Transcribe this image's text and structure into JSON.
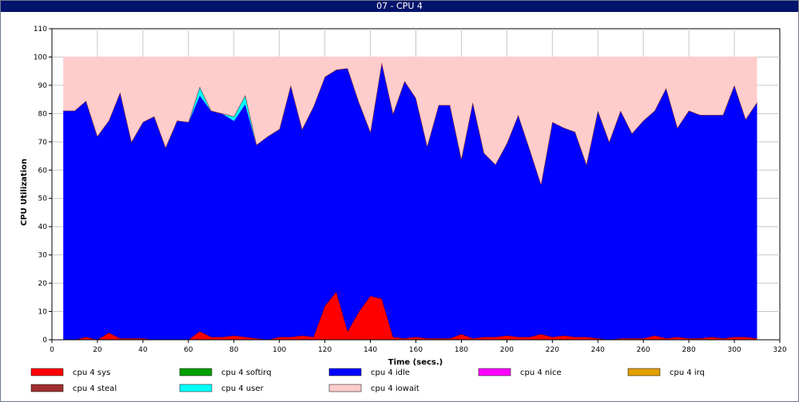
{
  "window": {
    "title": "07 - CPU 4"
  },
  "chart_data": {
    "type": "area",
    "stacked": true,
    "xlabel": "Time (secs.)",
    "ylabel": "CPU Utilization",
    "xlim": [
      0,
      320
    ],
    "ylim": [
      0,
      110
    ],
    "xticks": [
      0,
      20,
      40,
      60,
      80,
      100,
      120,
      140,
      160,
      180,
      200,
      220,
      240,
      260,
      280,
      300,
      320
    ],
    "yticks": [
      0,
      10,
      20,
      30,
      40,
      50,
      60,
      70,
      80,
      90,
      100,
      110
    ],
    "grid": true,
    "legend_position": "bottom",
    "x": [
      5,
      10,
      15,
      20,
      25,
      30,
      35,
      40,
      45,
      50,
      55,
      60,
      65,
      70,
      75,
      80,
      85,
      90,
      95,
      100,
      105,
      110,
      115,
      120,
      125,
      130,
      135,
      140,
      145,
      150,
      155,
      160,
      165,
      170,
      175,
      180,
      185,
      190,
      195,
      200,
      205,
      210,
      215,
      220,
      225,
      230,
      235,
      240,
      245,
      250,
      255,
      260,
      265,
      270,
      275,
      280,
      285,
      290,
      295,
      300,
      305,
      310
    ],
    "series": [
      {
        "name": "cpu 4 sys",
        "color": "#ff0000",
        "values": [
          0,
          0,
          1,
          0,
          2.5,
          0.5,
          0.5,
          0.5,
          0,
          0,
          0,
          0,
          3,
          1,
          1,
          1.5,
          1,
          0.5,
          0,
          1,
          1,
          1.5,
          1,
          12,
          17,
          3,
          10,
          15.5,
          14.5,
          1,
          0.5,
          1,
          0.5,
          0.5,
          0.5,
          2,
          0.5,
          1,
          1,
          1.5,
          1,
          1,
          2,
          1,
          1.5,
          1,
          1,
          0.5,
          0,
          0.5,
          0.5,
          0.5,
          1.5,
          0.5,
          1,
          0.5,
          0.5,
          1,
          0.5,
          1,
          1,
          0.5
        ]
      },
      {
        "name": "cpu 4 softirq",
        "color": "#00a000",
        "values": [
          0,
          0,
          0,
          0,
          0,
          0,
          0,
          0,
          0,
          0,
          0,
          0,
          0,
          0,
          0,
          0,
          0,
          0,
          0,
          0,
          0,
          0,
          0,
          0,
          0,
          0,
          0,
          0,
          0,
          0,
          0,
          0,
          0,
          0,
          0,
          0,
          0,
          0,
          0,
          0,
          0,
          0,
          0,
          0,
          0,
          0,
          0,
          0,
          0,
          0,
          0,
          0,
          0,
          0,
          0,
          0,
          0,
          0,
          0,
          0,
          0,
          0
        ]
      },
      {
        "name": "cpu 4 idle",
        "color": "#0000ff",
        "values": [
          81,
          81,
          83.5,
          72,
          75,
          87,
          69.5,
          76.5,
          79,
          68,
          77.5,
          77,
          83.5,
          80,
          79,
          76,
          82.5,
          68.5,
          72,
          73.5,
          89,
          73,
          81.5,
          81,
          78.5,
          93,
          74,
          58,
          83.5,
          79,
          91,
          84.5,
          68,
          82.5,
          82.5,
          62,
          83.5,
          65,
          61,
          68,
          78.5,
          66.5,
          53,
          76,
          73.5,
          72.5,
          61,
          80.5,
          70,
          80.5,
          72.5,
          77,
          79.5,
          88.5,
          74,
          80.5,
          79,
          78.5,
          79,
          89,
          77,
          83.5
        ]
      },
      {
        "name": "cpu 4 nice",
        "color": "#ff00ff",
        "values": [
          0,
          0,
          0,
          0,
          0,
          0,
          0,
          0,
          0,
          0,
          0,
          0,
          0,
          0,
          0,
          0,
          0,
          0,
          0,
          0,
          0,
          0,
          0,
          0,
          0,
          0,
          0,
          0,
          0,
          0,
          0,
          0,
          0,
          0,
          0,
          0,
          0,
          0,
          0,
          0,
          0,
          0,
          0,
          0,
          0,
          0,
          0,
          0,
          0,
          0,
          0,
          0,
          0,
          0,
          0,
          0,
          0,
          0,
          0,
          0,
          0,
          0
        ]
      },
      {
        "name": "cpu 4 irq",
        "color": "#e0a000",
        "values": [
          0,
          0,
          0,
          0,
          0,
          0,
          0,
          0,
          0,
          0,
          0,
          0,
          0,
          0,
          0,
          0,
          0,
          0,
          0,
          0,
          0,
          0,
          0,
          0,
          0,
          0,
          0,
          0,
          0,
          0,
          0,
          0,
          0,
          0,
          0,
          0,
          0,
          0,
          0,
          0,
          0,
          0,
          0,
          0,
          0,
          0,
          0,
          0,
          0,
          0,
          0,
          0,
          0,
          0,
          0,
          0,
          0,
          0,
          0,
          0,
          0,
          0
        ]
      },
      {
        "name": "cpu 4 steal",
        "color": "#a03030",
        "values": [
          0,
          0,
          0,
          0,
          0,
          0,
          0,
          0,
          0,
          0,
          0,
          0,
          0,
          0,
          0,
          0,
          0,
          0,
          0,
          0,
          0,
          0,
          0,
          0,
          0,
          0,
          0,
          0,
          0,
          0,
          0,
          0,
          0,
          0,
          0,
          0,
          0,
          0,
          0,
          0,
          0,
          0,
          0,
          0,
          0,
          0,
          0,
          0,
          0,
          0,
          0,
          0,
          0,
          0,
          0,
          0,
          0,
          0,
          0,
          0,
          0,
          0
        ]
      },
      {
        "name": "cpu 4 user",
        "color": "#00ffff",
        "values": [
          0,
          0,
          0,
          0,
          0,
          0,
          0,
          0,
          0,
          0,
          0,
          0,
          3,
          0,
          0,
          1.5,
          3,
          0,
          0,
          0,
          0,
          0,
          0,
          0,
          0,
          0,
          0,
          0,
          0,
          0,
          0,
          0,
          0,
          0,
          0,
          0,
          0,
          0,
          0,
          0,
          0,
          0,
          0,
          0,
          0,
          0,
          0,
          0,
          0,
          0,
          0,
          0,
          0,
          0,
          0,
          0,
          0,
          0,
          0,
          0,
          0,
          0
        ]
      },
      {
        "name": "cpu 4 iowait",
        "color": "#ffcccc",
        "values": [
          19,
          19,
          15.5,
          28,
          22.5,
          12.5,
          30,
          23,
          21,
          32,
          22.5,
          23,
          10.5,
          19,
          20,
          21,
          13.5,
          31,
          28,
          25.5,
          10,
          25.5,
          17.5,
          7,
          4.5,
          4,
          16,
          26.5,
          2,
          20,
          8.5,
          14.5,
          31.5,
          17,
          17,
          36,
          16,
          34,
          38,
          30.5,
          20.5,
          32.5,
          45,
          23,
          25,
          26.5,
          38,
          19,
          30,
          19,
          27,
          22.5,
          19,
          11,
          25,
          19,
          20.5,
          20.5,
          20.5,
          10,
          22,
          16
        ]
      }
    ]
  }
}
